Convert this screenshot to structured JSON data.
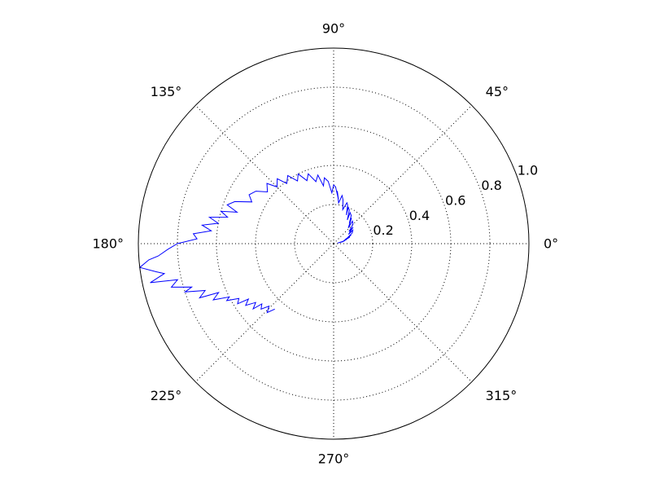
{
  "chart_data": {
    "type": "line",
    "projection": "polar",
    "title": "",
    "angle_ticks": [
      {
        "value": 0,
        "label": "0°"
      },
      {
        "value": 45,
        "label": "45°"
      },
      {
        "value": 90,
        "label": "90°"
      },
      {
        "value": 135,
        "label": "135°"
      },
      {
        "value": 180,
        "label": "180°"
      },
      {
        "value": 225,
        "label": "225°"
      },
      {
        "value": 270,
        "label": "270°"
      },
      {
        "value": 315,
        "label": "315°"
      }
    ],
    "radial_ticks": [
      {
        "value": 0.2,
        "label": "0.2"
      },
      {
        "value": 0.4,
        "label": "0.4"
      },
      {
        "value": 0.6,
        "label": "0.6"
      },
      {
        "value": 0.8,
        "label": "0.8"
      },
      {
        "value": 1.0,
        "label": "1.0"
      }
    ],
    "rlim": [
      0,
      1.0
    ],
    "grid": true,
    "colors": {
      "line": "#0000ff",
      "grid": "#000000",
      "frame": "#000000"
    },
    "series": [
      {
        "theta": [
          10,
          12,
          8,
          15,
          11,
          18,
          14,
          22,
          19,
          26,
          24,
          30,
          35,
          32,
          40,
          38,
          45,
          50,
          47,
          55,
          52,
          58,
          62,
          60,
          65,
          68,
          66,
          70,
          72,
          75,
          78,
          80,
          83,
          86,
          84,
          88,
          90,
          92,
          95,
          98,
          100,
          103,
          106,
          110,
          113,
          117,
          120,
          124,
          128,
          131,
          135,
          138,
          142,
          146,
          150,
          153,
          157,
          160,
          162,
          164,
          166,
          168,
          170,
          172,
          174,
          176,
          178,
          180,
          182,
          184,
          185,
          187,
          189,
          190,
          192,
          193,
          195,
          197,
          198,
          200,
          202,
          203,
          205,
          207,
          208,
          210,
          212,
          213,
          215,
          217,
          219,
          220,
          222,
          224,
          226,
          228
        ],
        "r": [
          0.03,
          0.05,
          0.02,
          0.06,
          0.04,
          0.07,
          0.05,
          0.09,
          0.06,
          0.1,
          0.08,
          0.11,
          0.12,
          0.09,
          0.13,
          0.1,
          0.14,
          0.15,
          0.11,
          0.16,
          0.13,
          0.17,
          0.18,
          0.14,
          0.19,
          0.2,
          0.16,
          0.21,
          0.22,
          0.18,
          0.23,
          0.25,
          0.21,
          0.27,
          0.23,
          0.29,
          0.3,
          0.26,
          0.32,
          0.34,
          0.3,
          0.36,
          0.33,
          0.38,
          0.35,
          0.4,
          0.37,
          0.42,
          0.39,
          0.44,
          0.41,
          0.46,
          0.43,
          0.48,
          0.5,
          0.47,
          0.55,
          0.58,
          0.52,
          0.6,
          0.56,
          0.65,
          0.6,
          0.68,
          0.63,
          0.72,
          0.7,
          0.8,
          0.85,
          0.9,
          0.95,
          1.0,
          0.92,
          0.88,
          0.96,
          0.82,
          0.86,
          0.76,
          0.8,
          0.7,
          0.74,
          0.64,
          0.68,
          0.6,
          0.62,
          0.56,
          0.58,
          0.52,
          0.55,
          0.5,
          0.53,
          0.48,
          0.5,
          0.46,
          0.49,
          0.45
        ]
      }
    ]
  }
}
